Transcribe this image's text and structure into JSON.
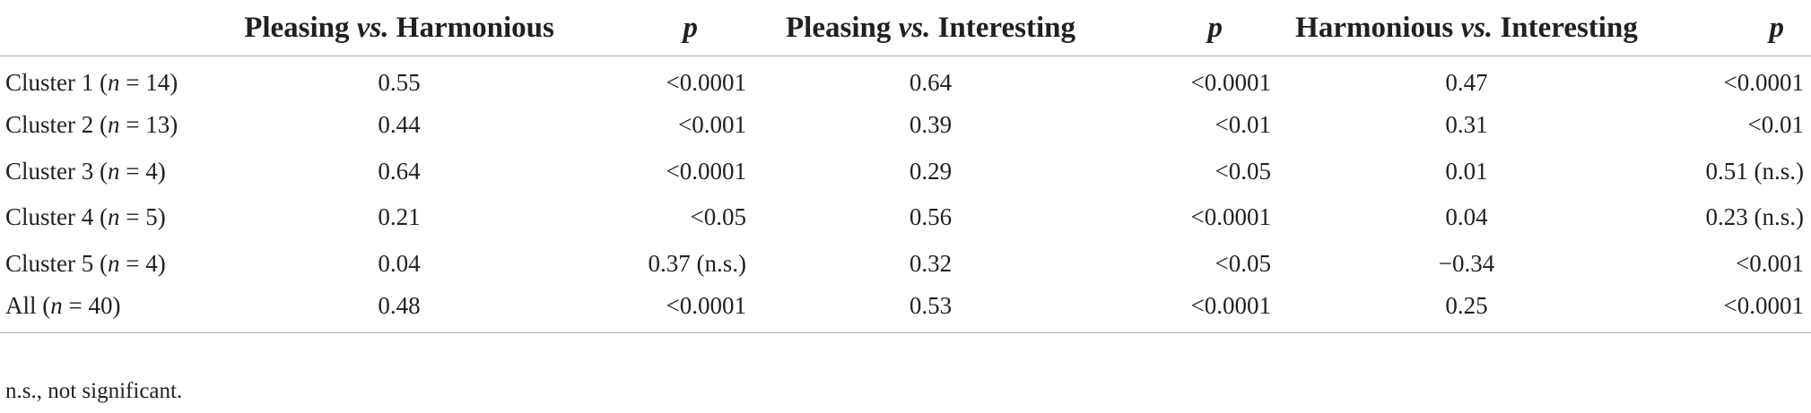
{
  "table": {
    "headers": [
      {
        "left": "Pleasing ",
        "vs": "vs.",
        "right": " Harmonious"
      },
      {
        "p": "p"
      },
      {
        "left": "Pleasing ",
        "vs": "vs.",
        "right": " Interesting"
      },
      {
        "p": "p"
      },
      {
        "left": "Harmonious ",
        "vs": "vs.",
        "right": " Interesting"
      },
      {
        "p": "p"
      }
    ],
    "rows": [
      {
        "label_pre": "Cluster 1 (",
        "n": "n",
        "label_post": "  = 14)",
        "values": [
          "0.55",
          "<0.0001",
          "0.64",
          "<0.0001",
          "0.47",
          "<0.0001"
        ]
      },
      {
        "label_pre": "Cluster 2 (",
        "n": "n",
        "label_post": " = 13)",
        "values": [
          "0.44",
          "<0.001",
          "0.39",
          "<0.01",
          "0.31",
          "<0.01"
        ]
      },
      {
        "label_pre": "Cluster 3 (",
        "n": "n",
        "label_post": " = 4)",
        "values": [
          "0.64",
          "<0.0001",
          "0.29",
          "<0.05",
          "0.01",
          "0.51 (n.s.)"
        ]
      },
      {
        "label_pre": "Cluster 4 (",
        "n": "n",
        "label_post": " = 5)",
        "values": [
          "0.21",
          "<0.05",
          "0.56",
          "<0.0001",
          "0.04",
          "0.23 (n.s.)"
        ]
      },
      {
        "label_pre": "Cluster 5 (",
        "n": "n",
        "label_post": " = 4)",
        "values": [
          "0.04",
          "0.37 (n.s.)",
          "0.32",
          "<0.05",
          "−0.34",
          "<0.001"
        ]
      },
      {
        "label_pre": "All (",
        "n": "n",
        "label_post": " = 40)",
        "values": [
          "0.48",
          "<0.0001",
          "0.53",
          "<0.0001",
          "0.25",
          "<0.0001"
        ]
      }
    ]
  },
  "footnote": "n.s., not significant."
}
